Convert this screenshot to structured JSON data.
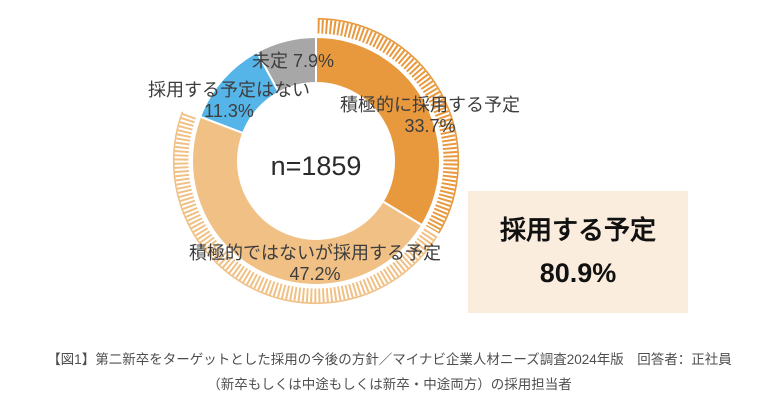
{
  "chart_data": {
    "type": "pie",
    "subtype": "donut",
    "center_label": "n=1859",
    "unit": "%",
    "start_angle_deg": 0,
    "direction": "clockwise",
    "segments": [
      {
        "label": "積極的に採用する予定",
        "value": 33.7,
        "pct": "33.7%",
        "color": "#E8993E",
        "hatched": true
      },
      {
        "label": "積極的ではないが採用する予定",
        "value": 47.2,
        "pct": "47.2%",
        "color": "#F0C085",
        "hatched": true
      },
      {
        "label": "採用する予定はない",
        "value": 11.3,
        "pct": "11.3%",
        "color": "#55B5E8",
        "hatched": false
      },
      {
        "label": "未定",
        "value": 7.9,
        "pct": "7.9%",
        "color": "#A7A7A7",
        "hatched": false
      }
    ],
    "highlight": {
      "label": "採用する予定",
      "value": 80.9,
      "pct": "80.9%",
      "bg_color": "#FAEDDE"
    }
  },
  "caption": {
    "line1": "【図1】第二新卒をターゲットとした採用の今後の方針／マイナビ企業人材ニーズ調査2024年版　回答者：正社員",
    "line2": "（新卒もしくは中途もしくは新卒・中途両方）の採用担当者"
  }
}
